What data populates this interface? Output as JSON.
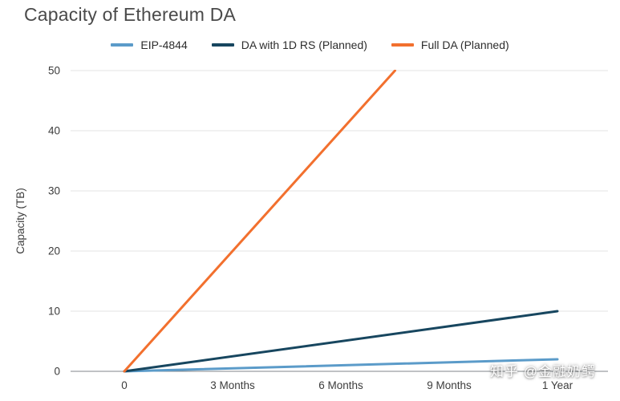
{
  "page": {
    "background": "#ffffff"
  },
  "chart_data": {
    "type": "line",
    "title": "Capacity of Ethereum DA",
    "xlabel": "",
    "ylabel": "Capacity (TB)",
    "ylim": [
      0,
      50
    ],
    "y_ticks": [
      0,
      10,
      20,
      30,
      40,
      50
    ],
    "xlim_months": [
      0,
      12
    ],
    "x_ticks": [
      {
        "value": 0,
        "label": "0"
      },
      {
        "value": 3,
        "label": "3 Months"
      },
      {
        "value": 6,
        "label": "6 Months"
      },
      {
        "value": 9,
        "label": "9 Months"
      },
      {
        "value": 12,
        "label": "1 Year"
      }
    ],
    "grid": "horizontal",
    "legend_position": "top-center",
    "series": [
      {
        "name": "EIP-4844",
        "color": "#5B9BC9",
        "x_months": [
          0,
          12
        ],
        "values": [
          0,
          2
        ]
      },
      {
        "name": "DA with 1D RS (Planned)",
        "color": "#17465F",
        "x_months": [
          0,
          12
        ],
        "values": [
          0,
          10
        ]
      },
      {
        "name": "Full DA (Planned)",
        "color": "#F2702E",
        "x_months": [
          0,
          7.5
        ],
        "values": [
          0,
          50
        ]
      }
    ],
    "colors": {
      "grid_line": "#e3e3e3",
      "baseline": "#80868b",
      "tick_text": "#3c3c3c",
      "title_text": "#4a4a4a"
    }
  },
  "watermark": {
    "text": "知乎 @金融奶鳄"
  }
}
